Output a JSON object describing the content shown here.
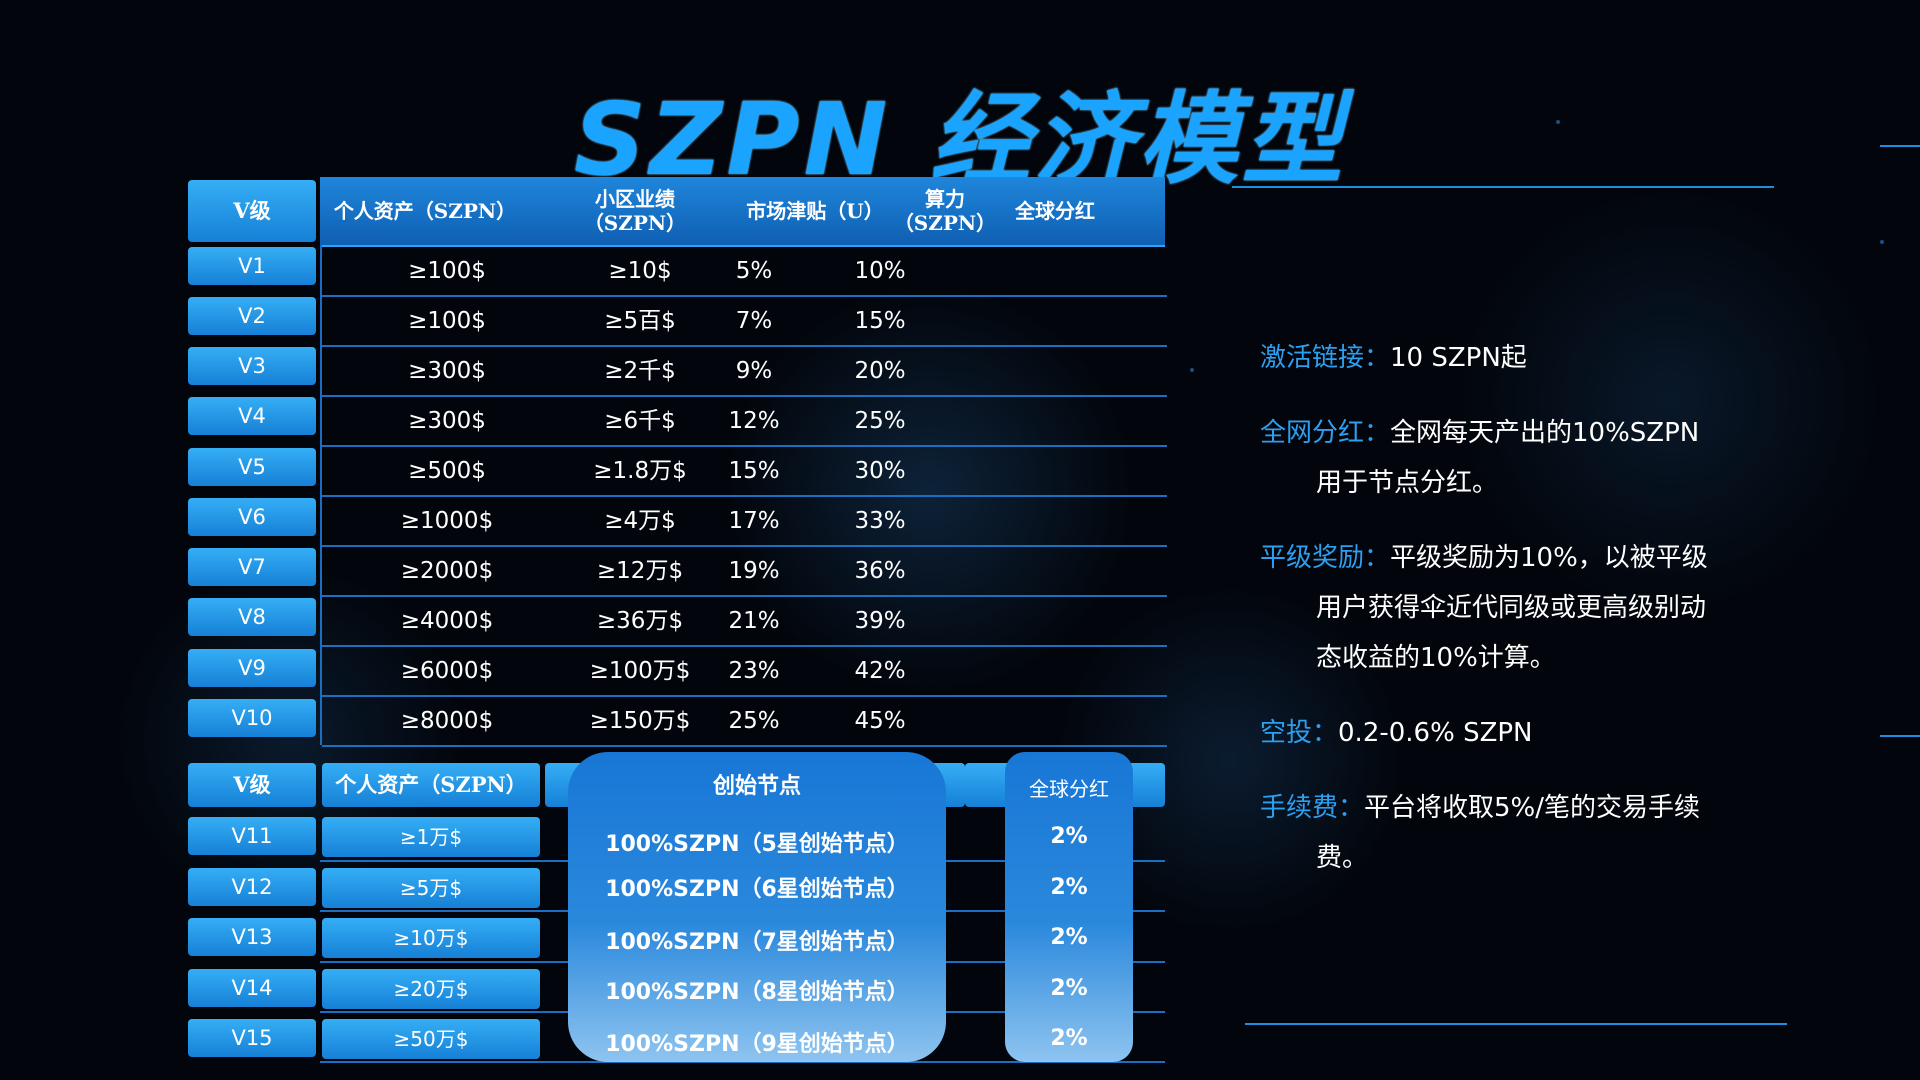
{
  "title": "SZPN 经济模型",
  "table1": {
    "headers": {
      "vlevel": "V级",
      "asset": "个人资产（SZPN）",
      "area_1": "小区业绩",
      "area_2": "（SZPN）",
      "subsidy": "市场津贴（U）",
      "power_1": "算力",
      "power_2": "（SZPN）",
      "dividend": "全球分红"
    },
    "rows": [
      {
        "level": "V1",
        "asset": "≥100$",
        "area": "≥10$",
        "subsidy": "5%",
        "power": "10%"
      },
      {
        "level": "V2",
        "asset": "≥100$",
        "area": "≥5百$",
        "subsidy": "7%",
        "power": "15%"
      },
      {
        "level": "V3",
        "asset": "≥300$",
        "area": "≥2千$",
        "subsidy": "9%",
        "power": "20%"
      },
      {
        "level": "V4",
        "asset": "≥300$",
        "area": "≥6千$",
        "subsidy": "12%",
        "power": "25%"
      },
      {
        "level": "V5",
        "asset": "≥500$",
        "area": "≥1.8万$",
        "subsidy": "15%",
        "power": "30%"
      },
      {
        "level": "V6",
        "asset": "≥1000$",
        "area": "≥4万$",
        "subsidy": "17%",
        "power": "33%"
      },
      {
        "level": "V7",
        "asset": "≥2000$",
        "area": "≥12万$",
        "subsidy": "19%",
        "power": "36%"
      },
      {
        "level": "V8",
        "asset": "≥4000$",
        "area": "≥36万$",
        "subsidy": "21%",
        "power": "39%"
      },
      {
        "level": "V9",
        "asset": "≥6000$",
        "area": "≥100万$",
        "subsidy": "23%",
        "power": "42%"
      },
      {
        "level": "V10",
        "asset": "≥8000$",
        "area": "≥150万$",
        "subsidy": "25%",
        "power": "45%"
      }
    ]
  },
  "table2": {
    "headers": {
      "vlevel": "V级",
      "asset": "个人资产（SZPN）",
      "node": "创始节点",
      "dividend": "全球分红"
    },
    "rows": [
      {
        "level": "V11",
        "asset": "≥1万$",
        "node": "100%SZPN（5星创始节点）",
        "dividend": "2%"
      },
      {
        "level": "V12",
        "asset": "≥5万$",
        "node": "100%SZPN（6星创始节点）",
        "dividend": "2%"
      },
      {
        "level": "V13",
        "asset": "≥10万$",
        "node": "100%SZPN（7星创始节点）",
        "dividend": "2%"
      },
      {
        "level": "V14",
        "asset": "≥20万$",
        "node": "100%SZPN（8星创始节点）",
        "dividend": "2%"
      },
      {
        "level": "V15",
        "asset": "≥50万$",
        "node": "100%SZPN（9星创始节点）",
        "dividend": "2%"
      }
    ]
  },
  "rules": {
    "activation": {
      "label": "激活链接：",
      "line1": "10 SZPN起"
    },
    "network_dividend": {
      "label": "全网分红：",
      "line1": "全网每天产出的10%SZPN",
      "line2": "用于节点分红。"
    },
    "peer_reward": {
      "label": "平级奖励：",
      "line1": "平级奖励为10%，以被平级",
      "line2": "用户获得伞近代同级或更高级别动",
      "line3": "态收益的10%计算。"
    },
    "airdrop": {
      "label": "空投：",
      "line1": "0.2-0.6% SZPN"
    },
    "fee": {
      "label": "手续费：",
      "line1": "平台将收取5%/笔的交易手续",
      "line2": "费。"
    }
  },
  "colors": {
    "accent": "#1aa3ff",
    "label_blue": "#2d9ff0",
    "background": "#02050b"
  }
}
